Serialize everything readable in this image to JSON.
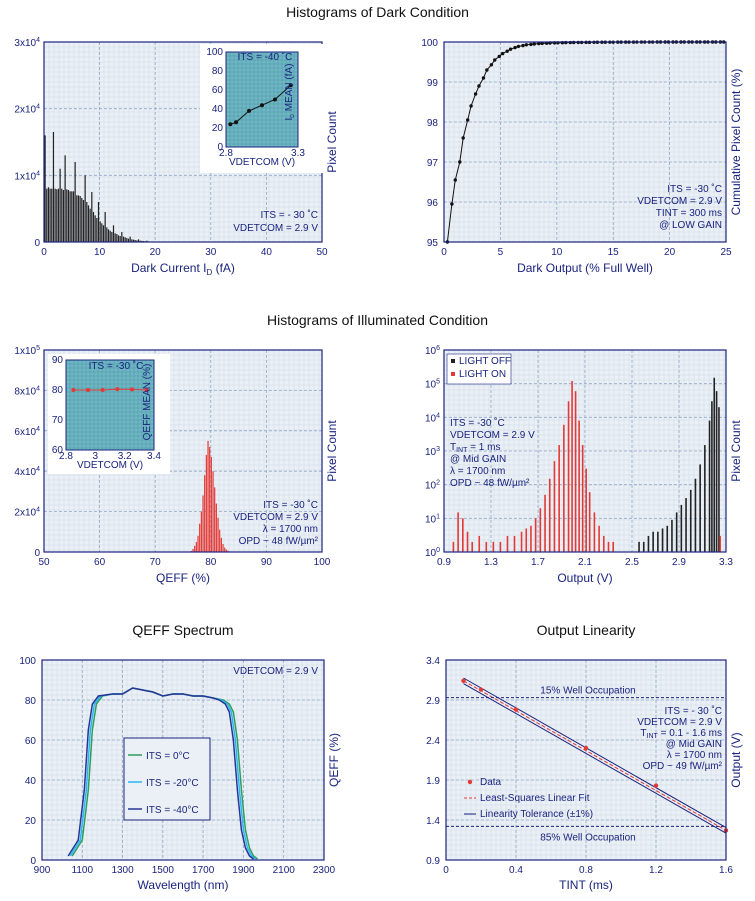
{
  "sections": {
    "dark": "Histograms of Dark Condition",
    "illum": "Histograms of Illuminated Condition"
  },
  "chart_data": [
    {
      "id": "dark_hist",
      "type": "bar",
      "xlabel": "Dark Current I",
      "xlabel_sub": "D",
      "xlabel_tail": " (fA)",
      "ylabel": "Pixel Count",
      "xlim": [
        0,
        50
      ],
      "ylim": [
        0,
        30000
      ],
      "xticks": [
        0,
        10,
        20,
        30,
        40,
        50
      ],
      "yticks": [
        {
          "v": 0,
          "m": "0",
          "e": ""
        },
        {
          "v": 10000,
          "m": "1x10",
          "e": "4"
        },
        {
          "v": 20000,
          "m": "2x10",
          "e": "4"
        },
        {
          "v": 30000,
          "m": "3x10",
          "e": "4"
        }
      ],
      "annotation": [
        "ITS = - 30 ˚C",
        "VDETCOM = 2.9 V"
      ],
      "x": [
        0.2,
        0.5,
        0.8,
        1.1,
        1.4,
        1.7,
        2.0,
        2.3,
        2.6,
        2.9,
        3.2,
        3.5,
        3.8,
        4.1,
        4.4,
        4.7,
        5.0,
        5.3,
        5.6,
        5.9,
        6.2,
        6.5,
        6.8,
        7.1,
        7.4,
        7.7,
        8.0,
        8.3,
        8.6,
        8.9,
        9.2,
        9.5,
        9.8,
        10.1,
        10.4,
        10.7,
        11.0,
        11.3,
        11.6,
        11.9,
        12.2,
        12.5,
        12.8,
        13.1,
        13.4,
        13.7,
        14.0,
        14.3,
        14.6,
        14.9,
        15.2,
        15.5,
        15.8,
        16.1,
        16.4,
        16.7,
        17.0,
        17.3,
        17.6,
        17.9,
        18.2,
        18.5,
        18.8,
        19.1,
        19.4,
        19.7,
        20.0,
        20.4
      ],
      "values": [
        16000,
        8000,
        8200,
        8000,
        8000,
        16500,
        8000,
        7900,
        8000,
        11000,
        8000,
        7800,
        13000,
        7900,
        7800,
        7600,
        7600,
        7600,
        12000,
        7000,
        7000,
        6900,
        6600,
        6300,
        10000,
        6000,
        5500,
        5000,
        7500,
        4500,
        4000,
        3600,
        6000,
        3100,
        2800,
        2500,
        4500,
        2200,
        1900,
        1700,
        1500,
        2500,
        1300,
        1200,
        1000,
        900,
        1500,
        800,
        700,
        600,
        500,
        800,
        400,
        350,
        300,
        250,
        400,
        200,
        180,
        150,
        120,
        200,
        100,
        80,
        60,
        50,
        60,
        40
      ]
    },
    {
      "id": "dark_inset",
      "type": "line",
      "title": "ITS = -40 ˚C",
      "xlabel": "VDETCOM (V)",
      "ylabel": "I",
      "ylabel_sub": "D",
      "ylabel_tail": " MEAN (fA)",
      "xlim": [
        2.8,
        3.3
      ],
      "ylim": [
        0,
        100
      ],
      "xticks": [
        2.8,
        3.3
      ],
      "yticks": [
        0,
        20,
        40,
        60,
        80,
        100
      ],
      "x": [
        2.83,
        2.87,
        2.96,
        3.05,
        3.14,
        3.25
      ],
      "values": [
        24,
        26,
        38,
        44,
        50,
        65
      ]
    },
    {
      "id": "dark_cum",
      "type": "line",
      "xlabel": "Dark Output (% Full Well)",
      "ylabel": "Cumulative Pixel Count (%)",
      "xlim": [
        0,
        25
      ],
      "ylim": [
        95,
        100
      ],
      "xticks": [
        0,
        5,
        10,
        15,
        20,
        25
      ],
      "yticks": [
        95,
        96,
        97,
        98,
        99,
        100
      ],
      "annotation": [
        "ITS = -30 ˚C",
        "VDETCOM = 2.9 V",
        "TINT = 300 ms",
        "@ LOW GAIN"
      ],
      "x": [
        0.3,
        0.7,
        1.0,
        1.4,
        1.7,
        2.1,
        2.4,
        2.8,
        3.1,
        3.5,
        3.8,
        4.2,
        4.5,
        4.9,
        5.2,
        5.6,
        5.9,
        6.3,
        6.6,
        7.0,
        7.3,
        7.7,
        8.0,
        8.4,
        8.7,
        9.1,
        9.4,
        9.8,
        10.1,
        10.5,
        10.8,
        11.2,
        11.5,
        11.9,
        12.2,
        12.6,
        12.9,
        13.3,
        13.6,
        14.0,
        14.3,
        14.7,
        15.0,
        15.4,
        15.7,
        16.1,
        16.4,
        16.8,
        17.1,
        17.5,
        17.8,
        18.2,
        18.5,
        18.9,
        19.2,
        19.6,
        19.9,
        20.3,
        20.6,
        21.0,
        21.3,
        21.7,
        22.0,
        22.4,
        22.7,
        23.1,
        23.4,
        23.8,
        24.1,
        24.5,
        24.8
      ],
      "values": [
        95.0,
        95.95,
        96.55,
        97.0,
        97.6,
        98.05,
        98.4,
        98.7,
        98.9,
        99.1,
        99.3,
        99.43,
        99.55,
        99.64,
        99.71,
        99.77,
        99.82,
        99.86,
        99.89,
        99.91,
        99.93,
        99.94,
        99.95,
        99.96,
        99.965,
        99.97,
        99.975,
        99.978,
        99.98,
        99.982,
        99.985,
        99.987,
        99.988,
        99.99,
        99.99,
        99.991,
        99.992,
        99.993,
        99.994,
        99.995,
        99.995,
        99.996,
        99.996,
        99.997,
        99.997,
        99.998,
        99.998,
        99.998,
        99.999,
        99.999,
        99.999,
        99.999,
        99.999,
        100,
        100,
        100,
        100,
        100,
        100,
        100,
        100,
        100,
        100,
        100,
        100,
        100,
        100,
        100,
        100,
        100,
        100
      ]
    },
    {
      "id": "illum_hist",
      "type": "bar",
      "xlabel": "QEFF (%)",
      "ylabel": "Pixel Count",
      "xlim": [
        50,
        100
      ],
      "ylim": [
        0,
        100000
      ],
      "xticks": [
        50,
        60,
        70,
        80,
        90,
        100
      ],
      "yticks": [
        {
          "v": 0,
          "m": "0",
          "e": ""
        },
        {
          "v": 20000,
          "m": "2x10",
          "e": "4"
        },
        {
          "v": 40000,
          "m": "4x10",
          "e": "4"
        },
        {
          "v": 60000,
          "m": "6x10",
          "e": "4"
        },
        {
          "v": 80000,
          "m": "8x10",
          "e": "4"
        },
        {
          "v": 100000,
          "m": "1x10",
          "e": "5"
        }
      ],
      "annotation": [
        "ITS = -30 ˚C",
        "VDETCOM = 2.9 V",
        "λ = 1700 nm",
        "OPD ~ 48 fW/µm²"
      ],
      "x": [
        76.5,
        76.8,
        77.1,
        77.4,
        77.7,
        78.0,
        78.3,
        78.6,
        78.9,
        79.2,
        79.5,
        79.8,
        80.1,
        80.4,
        80.7,
        81.0,
        81.3,
        81.6,
        81.9,
        82.2,
        82.5,
        82.8,
        83.1,
        83.4,
        83.7
      ],
      "values": [
        500,
        1500,
        3000,
        5000,
        8000,
        14000,
        20000,
        28000,
        38000,
        48000,
        55000,
        52000,
        47000,
        40000,
        32000,
        24000,
        17000,
        11000,
        7000,
        4000,
        2200,
        1200,
        600,
        300,
        150
      ]
    },
    {
      "id": "illum_inset",
      "type": "line",
      "title": "ITS = -30 ˚C",
      "xlabel": "VDETCOM (V)",
      "ylabel": "QEFF MEAN (%)",
      "xlim": [
        2.8,
        3.4
      ],
      "ylim": [
        60,
        90
      ],
      "xticks": [
        2.8,
        3.0,
        3.2,
        3.4
      ],
      "yticks": [
        60,
        70,
        80,
        90
      ],
      "x": [
        2.85,
        2.95,
        3.05,
        3.15,
        3.25,
        3.35
      ],
      "values": [
        80,
        80,
        80,
        80.3,
        80.2,
        80
      ]
    },
    {
      "id": "illum_log",
      "type": "bar",
      "xlabel": "Output (V)",
      "ylabel": "Pixel Count",
      "xlim": [
        0.9,
        3.3
      ],
      "ylim": [
        1,
        1000000
      ],
      "yscale": "log",
      "xticks": [
        0.9,
        1.3,
        1.7,
        2.1,
        2.5,
        2.9,
        3.3
      ],
      "yticks": [
        {
          "v": 1,
          "m": "10",
          "e": "0"
        },
        {
          "v": 10,
          "m": "10",
          "e": "1"
        },
        {
          "v": 100,
          "m": "10",
          "e": "2"
        },
        {
          "v": 1000,
          "m": "10",
          "e": "3"
        },
        {
          "v": 10000,
          "m": "10",
          "e": "4"
        },
        {
          "v": 100000,
          "m": "10",
          "e": "5"
        },
        {
          "v": 1000000,
          "m": "10",
          "e": "6"
        }
      ],
      "legend": [
        "LIGHT OFF",
        "LIGHT ON"
      ],
      "annotation": [
        "ITS = -30 ˚C",
        "VDETCOM = 2.9 V",
        "T",
        "INT",
        " = 1 ms",
        "@ Mid GAIN",
        "λ = 1700 nm",
        "OPD ~ 48 fW/µm²"
      ],
      "series": [
        {
          "name": "LIGHT OFF",
          "color": "#222222",
          "x": [
            2.56,
            2.6,
            2.64,
            2.68,
            2.72,
            2.76,
            2.8,
            2.84,
            2.88,
            2.92,
            2.96,
            3.0,
            3.04,
            3.08,
            3.12,
            3.16,
            3.18,
            3.2,
            3.22,
            3.24
          ],
          "values": [
            2,
            2,
            3,
            4,
            4,
            5,
            6,
            9,
            15,
            25,
            40,
            70,
            150,
            400,
            1500,
            8000,
            30000,
            150000,
            60000,
            20000
          ]
        },
        {
          "name": "LIGHT ON",
          "color": "#e53935",
          "x": [
            0.98,
            1.02,
            1.06,
            1.1,
            1.14,
            1.2,
            1.26,
            1.32,
            1.38,
            1.44,
            1.5,
            1.56,
            1.6,
            1.64,
            1.68,
            1.72,
            1.76,
            1.8,
            1.84,
            1.88,
            1.92,
            1.96,
            1.99,
            2.02,
            2.05,
            2.08,
            2.11,
            2.14,
            2.18,
            2.22,
            2.26,
            2.3,
            2.34,
            3.25
          ],
          "values": [
            2,
            15,
            10,
            4,
            2,
            3,
            2,
            2,
            2,
            3,
            3,
            4,
            5,
            6,
            10,
            20,
            50,
            150,
            500,
            1500,
            6000,
            30000,
            120000,
            60000,
            8000,
            1500,
            300,
            60,
            15,
            6,
            3,
            2,
            2,
            3
          ]
        }
      ]
    },
    {
      "id": "qeff_spectrum",
      "type": "line",
      "title": "QEFF Spectrum",
      "xlabel": "Wavelength (nm)",
      "ylabel": "QEFF (%)",
      "xlim": [
        900,
        2300
      ],
      "ylim": [
        0,
        100
      ],
      "xticks": [
        900,
        1100,
        1300,
        1500,
        1700,
        1900,
        2100,
        2300
      ],
      "yticks": [
        0,
        20,
        40,
        60,
        80,
        100
      ],
      "annotation": [
        "VDETCOM = 2.9 V"
      ],
      "series": [
        {
          "name": "ITS = 0°C",
          "color": "#2e9e5b",
          "x": [
            1050,
            1100,
            1130,
            1150,
            1170,
            1200,
            1250,
            1300,
            1350,
            1400,
            1450,
            1500,
            1550,
            1600,
            1650,
            1700,
            1750,
            1800,
            1830,
            1850,
            1870,
            1890,
            1910,
            1930,
            1950,
            1970
          ],
          "values": [
            2,
            10,
            35,
            65,
            78,
            82,
            83,
            83,
            86,
            85,
            84,
            82,
            83,
            83,
            82,
            82,
            81,
            80,
            78,
            74,
            60,
            35,
            15,
            6,
            2,
            0.5
          ]
        },
        {
          "name": "ITS = -20°C",
          "color": "#29b6f6",
          "x": [
            1040,
            1090,
            1120,
            1140,
            1160,
            1190,
            1250,
            1300,
            1350,
            1400,
            1450,
            1500,
            1550,
            1600,
            1650,
            1700,
            1750,
            1790,
            1820,
            1840,
            1860,
            1880,
            1900,
            1920,
            1940,
            1960
          ],
          "values": [
            2,
            10,
            35,
            65,
            78,
            82,
            83,
            83,
            86,
            85,
            84,
            82,
            83,
            83,
            82,
            82,
            81,
            80,
            78,
            74,
            60,
            35,
            15,
            6,
            2,
            0.5
          ]
        },
        {
          "name": "ITS = -40°C",
          "color": "#283593",
          "x": [
            1030,
            1080,
            1110,
            1130,
            1150,
            1180,
            1250,
            1300,
            1350,
            1400,
            1450,
            1500,
            1550,
            1600,
            1650,
            1700,
            1750,
            1780,
            1810,
            1830,
            1850,
            1870,
            1890,
            1910,
            1930,
            1950
          ],
          "values": [
            2,
            10,
            35,
            65,
            78,
            82,
            83,
            83,
            86,
            85,
            84,
            82,
            83,
            83,
            82,
            82,
            81,
            80,
            78,
            74,
            60,
            35,
            15,
            6,
            2,
            0.5
          ]
        }
      ]
    },
    {
      "id": "output_linearity",
      "type": "line",
      "title": "Output Linearity",
      "xlabel": "TINT (ms)",
      "ylabel": "Output (V)",
      "xlim": [
        0,
        1.6
      ],
      "ylim": [
        0.9,
        3.4
      ],
      "xticks": [
        0,
        0.4,
        0.8,
        1.2,
        1.6
      ],
      "yticks": [
        0.9,
        1.4,
        1.9,
        2.4,
        2.9,
        3.4
      ],
      "annotation": [
        "ITS = - 30 ˚C",
        "VDETCOM = 2.9 V",
        "T",
        "INT",
        " = 0.1 - 1.6 ms",
        "@ Mid GAIN",
        "λ = 1700 nm",
        "OPD ~ 49 fW/µm²"
      ],
      "hlines": [
        {
          "y": 2.93,
          "label": "15% Well Occupation"
        },
        {
          "y": 1.32,
          "label": "85% Well Occupation"
        }
      ],
      "legend": [
        "Data",
        "Least-Squares Linear Fit",
        "Linearity Tolerance (±1%)"
      ],
      "x": [
        0.1,
        0.2,
        0.4,
        0.8,
        1.2,
        1.6
      ],
      "values": [
        3.14,
        3.03,
        2.78,
        2.3,
        1.83,
        1.27
      ]
    }
  ]
}
